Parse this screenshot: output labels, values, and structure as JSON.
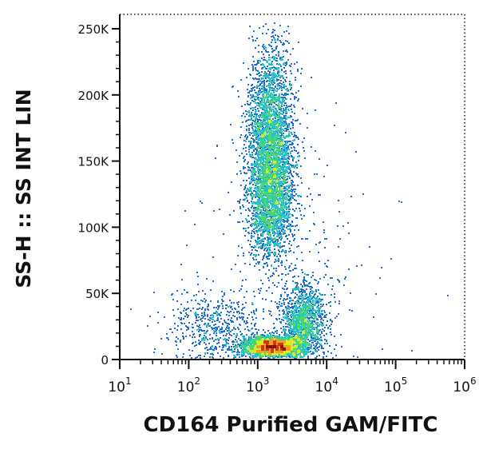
{
  "chart_data": {
    "type": "scatter",
    "title": "",
    "xlabel": "CD164 Purified GAM/FITC",
    "ylabel": "SS-H :: SS INT LIN",
    "x_scale": "log",
    "y_scale": "linear",
    "xlim": [
      10,
      1000000
    ],
    "ylim": [
      0,
      262144
    ],
    "x_ticks": [
      {
        "value": 10,
        "base": "10",
        "exp": "1"
      },
      {
        "value": 100,
        "base": "10",
        "exp": "2"
      },
      {
        "value": 1000,
        "base": "10",
        "exp": "3"
      },
      {
        "value": 10000,
        "base": "10",
        "exp": "4"
      },
      {
        "value": 100000,
        "base": "10",
        "exp": "5"
      },
      {
        "value": 1000000,
        "base": "10",
        "exp": "6"
      }
    ],
    "y_ticks": [
      {
        "value": 0,
        "label": "0"
      },
      {
        "value": 50000,
        "label": "50K"
      },
      {
        "value": 100000,
        "label": "100K"
      },
      {
        "value": 150000,
        "label": "150K"
      },
      {
        "value": 200000,
        "label": "200K"
      },
      {
        "value": 250000,
        "label": "250K"
      }
    ],
    "grid": false,
    "legend": "none",
    "density_colormap": [
      "#1a22a8",
      "#1f6fd6",
      "#25c2c8",
      "#49d86b",
      "#d9ea2a",
      "#f0a11a",
      "#d33515",
      "#8a120a"
    ],
    "populations": [
      {
        "label": "",
        "x_center": 1500,
        "x_log_sd": 0.17,
        "y_center": 160000,
        "y_sd": 38000,
        "weight": 0.4
      },
      {
        "label": "",
        "x_center": 1500,
        "x_log_sd": 0.16,
        "y_center": 115000,
        "y_sd": 18000,
        "weight": 0.1
      },
      {
        "label": "",
        "x_center": 1600,
        "x_log_sd": 0.22,
        "y_center": 10000,
        "y_sd": 4000,
        "weight": 0.26
      },
      {
        "label": "",
        "x_center": 4500,
        "x_log_sd": 0.16,
        "y_center": 30000,
        "y_sd": 14000,
        "weight": 0.14
      },
      {
        "label": "",
        "x_center": 250,
        "x_log_sd": 0.35,
        "y_center": 25000,
        "y_sd": 14000,
        "weight": 0.06
      },
      {
        "label": "",
        "x_center": 3000,
        "x_log_sd": 0.6,
        "y_center": 70000,
        "y_sd": 55000,
        "weight": 0.04
      }
    ]
  }
}
